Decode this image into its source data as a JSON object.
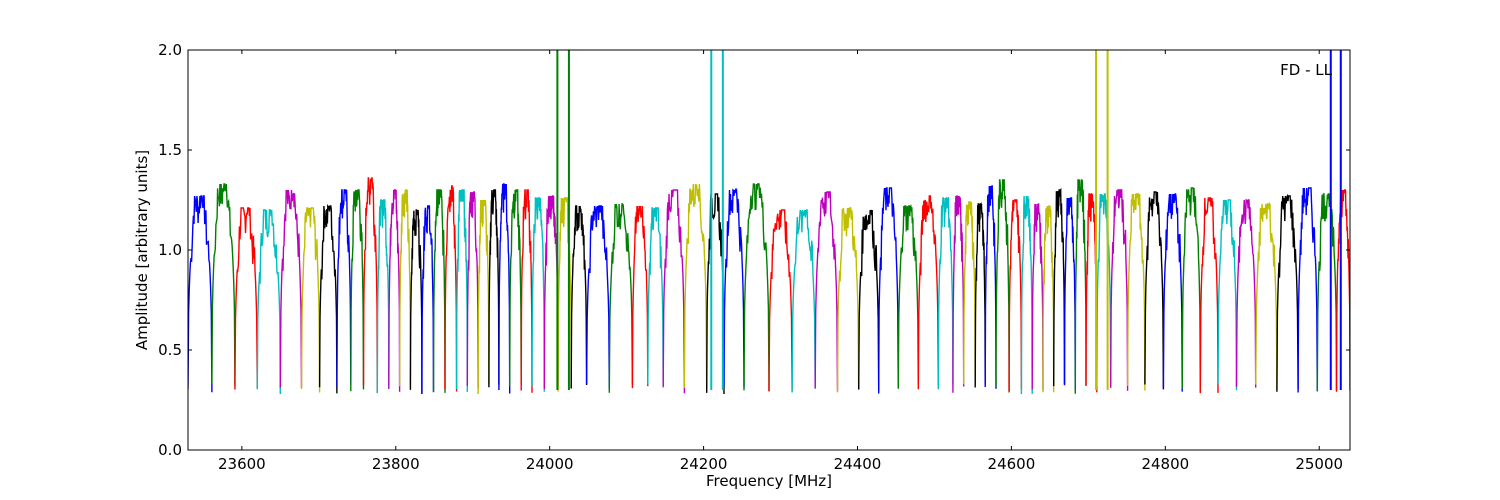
{
  "chart_data": {
    "type": "line",
    "title": "",
    "annotation": "FD - LL",
    "xlabel": "Frequency [MHz]",
    "ylabel": "Amplitude [arbitrary units]",
    "xlim": [
      23530,
      25040
    ],
    "ylim": [
      0.0,
      2.0
    ],
    "xticks": [
      23600,
      23800,
      24000,
      24200,
      24400,
      24600,
      24800,
      25000
    ],
    "yticks": [
      0.0,
      0.5,
      1.0,
      1.5,
      2.0
    ],
    "xtick_labels": [
      "23600",
      "23800",
      "24000",
      "24200",
      "24400",
      "24600",
      "24800",
      "25000"
    ],
    "ytick_labels": [
      "0.0",
      "0.5",
      "1.0",
      "1.5",
      "2.0"
    ],
    "grid": false,
    "legend": "none",
    "color_cycle": [
      "#0000ff",
      "#008000",
      "#ff0000",
      "#00bfbf",
      "#bf00bf",
      "#bfbf00",
      "#000000"
    ],
    "band_centers_mhz": [
      23545,
      23577,
      23605,
      23635,
      23665,
      23690,
      23712,
      23735,
      23748,
      23768,
      23784,
      23798,
      23812,
      23826,
      23842,
      23856,
      23872,
      23886,
      23900,
      23914,
      23928,
      23940,
      23956,
      23970,
      23984,
      24002,
      24020,
      24036,
      24060,
      24095,
      24120,
      24135,
      24160,
      24190,
      24218,
      24235,
      24270,
      24300,
      24330,
      24360,
      24388,
      24415,
      24440,
      24466,
      24492,
      24518,
      24530,
      24546,
      24560,
      24572,
      24588,
      24606,
      24620,
      24634,
      24648,
      24662,
      24676,
      24690,
      24704,
      24718,
      24740,
      24762,
      24785,
      24810,
      24834,
      24857,
      24880,
      24905,
      24930,
      24960,
      24985,
      25010,
      25035
    ],
    "band_peaks": [
      1.27,
      1.33,
      1.21,
      1.2,
      1.3,
      1.21,
      1.22,
      1.3,
      1.3,
      1.36,
      1.25,
      1.3,
      1.3,
      1.2,
      1.22,
      1.3,
      1.32,
      1.3,
      1.29,
      1.25,
      1.3,
      1.33,
      1.3,
      1.3,
      1.26,
      1.27,
      1.26,
      1.22,
      1.22,
      1.23,
      1.22,
      1.21,
      1.3,
      1.33,
      1.28,
      1.3,
      1.33,
      1.2,
      1.2,
      1.29,
      1.21,
      1.2,
      1.31,
      1.22,
      1.27,
      1.26,
      1.27,
      1.24,
      1.23,
      1.32,
      1.35,
      1.25,
      1.27,
      1.23,
      1.22,
      1.3,
      1.26,
      1.35,
      1.28,
      1.28,
      1.3,
      1.28,
      1.29,
      1.28,
      1.31,
      1.26,
      1.25,
      1.25,
      1.23,
      1.27,
      1.31,
      1.28,
      1.3
    ],
    "band_min": 0.28,
    "spikes_mhz": [
      24010,
      24025,
      24210,
      24225,
      24710,
      24725,
      25015,
      25028
    ],
    "spike_max": 2.0
  }
}
